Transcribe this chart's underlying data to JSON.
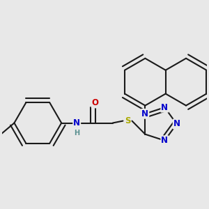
{
  "background_color": "#e8e8e8",
  "bond_color": "#1a1a1a",
  "bond_width": 1.5,
  "dbo": 0.025,
  "font_size": 8.5,
  "figsize": [
    3.0,
    3.0
  ],
  "dpi": 100,
  "xlim": [
    0.0,
    1.0
  ],
  "ylim": [
    0.1,
    1.0
  ],
  "N_color": "#0000cc",
  "O_color": "#cc0000",
  "S_color": "#aaaa00",
  "H_color": "#5a9090"
}
